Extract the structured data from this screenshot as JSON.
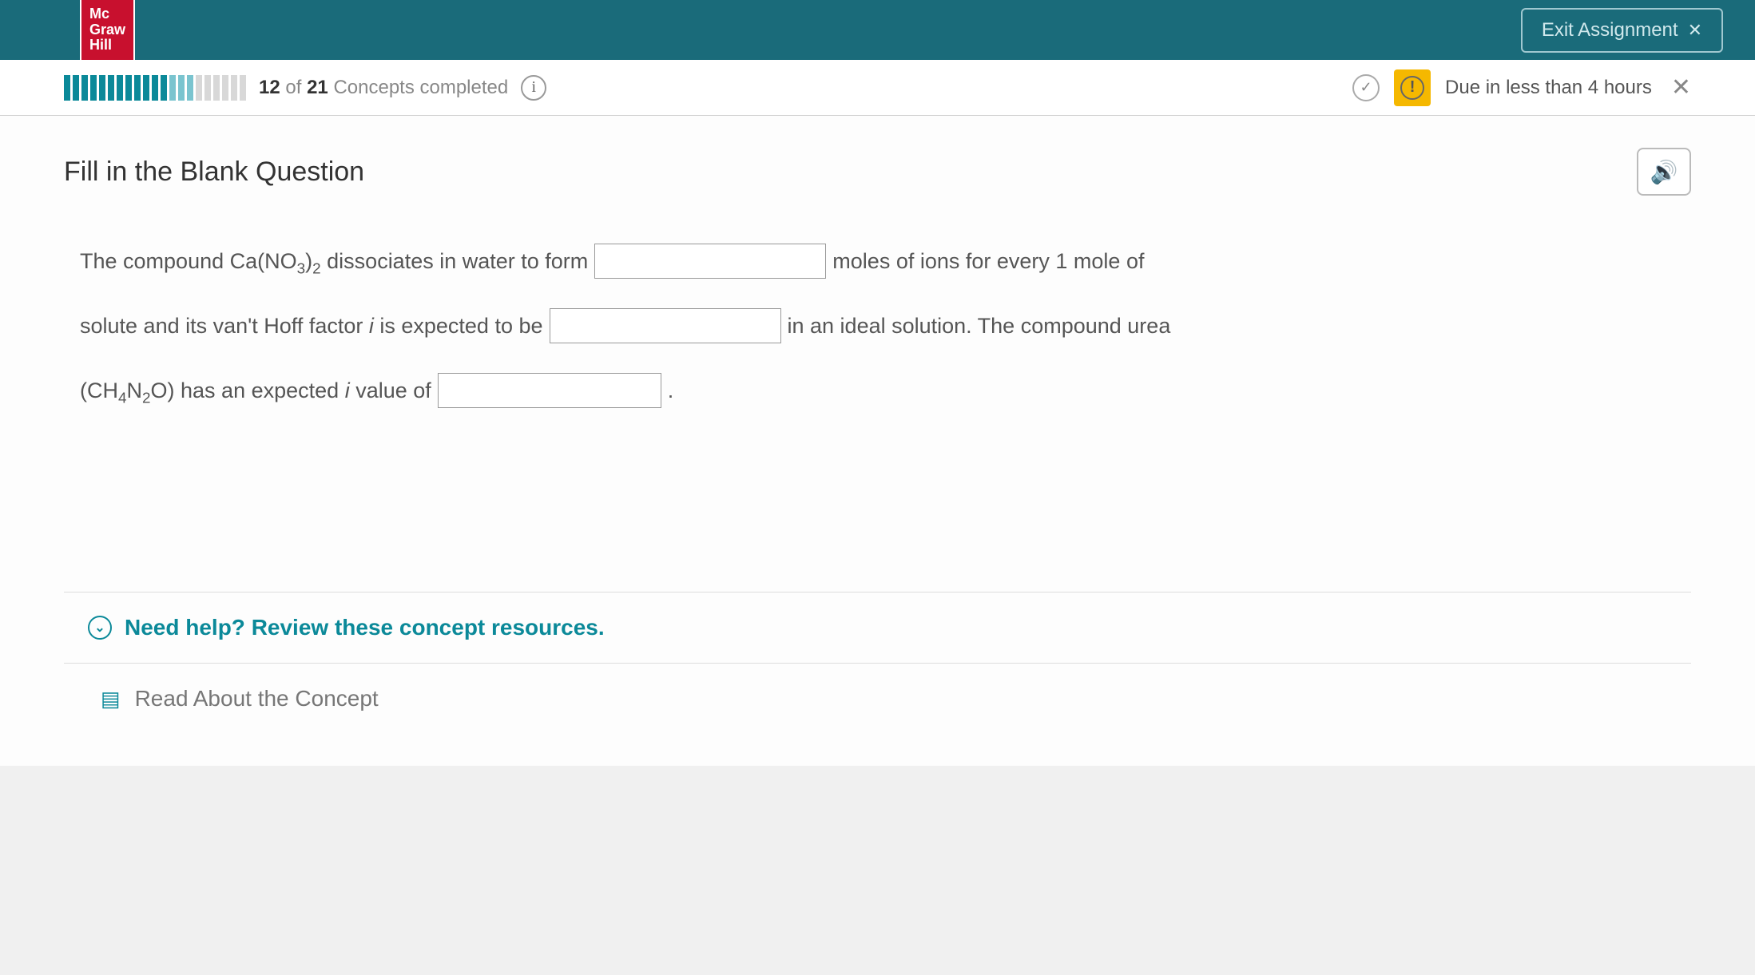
{
  "header": {
    "logo_line1": "Mc",
    "logo_line2": "Graw",
    "logo_line3": "Hill",
    "exit_label": "Exit Assignment"
  },
  "progress": {
    "completed": 12,
    "total": 21,
    "completed_word": "Concepts completed",
    "segments": {
      "done": 12,
      "partial": 3,
      "todo": 6
    },
    "due_text": "Due in less than 4 hours"
  },
  "question": {
    "type_label": "Fill in the Blank Question",
    "text_part1a": "The compound Ca(NO",
    "text_part1b": ")",
    "text_part1c": " dissociates in water to form",
    "text_part2": "moles of ions for every 1 mole of",
    "text_part3": "solute and its van't Hoff factor ",
    "text_part3b": " is expected to be",
    "text_part4": "in an ideal solution. The compound urea",
    "text_part5a": "(CH",
    "text_part5b": "N",
    "text_part5c": "O) has an expected ",
    "text_part5d": " value of",
    "text_part6": ".",
    "blank1_value": "",
    "blank2_value": "",
    "blank3_value": ""
  },
  "help": {
    "header_text": "Need help? Review these concept resources.",
    "read_text": "Read About the Concept"
  },
  "colors": {
    "brand_teal": "#1a6b7a",
    "accent_teal": "#0b8999",
    "logo_red": "#c8102e",
    "alert_yellow": "#f5b800"
  }
}
